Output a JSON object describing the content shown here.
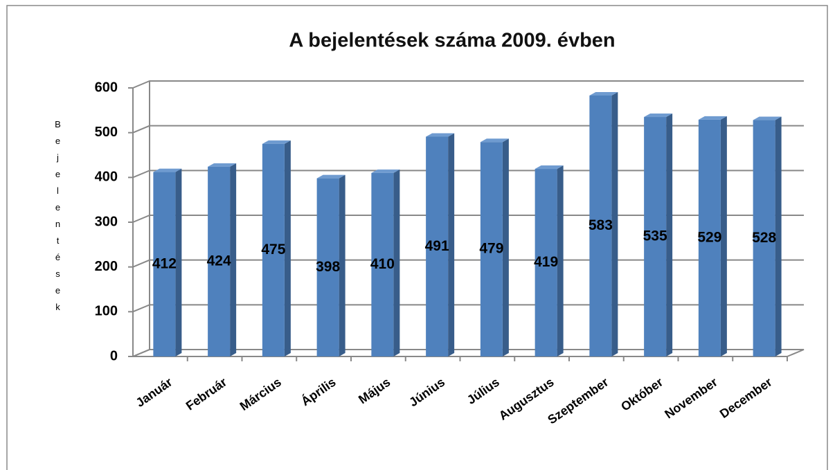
{
  "chart_data": {
    "type": "bar",
    "title": "A bejelentések száma 2009. évben",
    "y_axis_label": "Bejelentések",
    "categories": [
      "Január",
      "Február",
      "Március",
      "Április",
      "Május",
      "Június",
      "Július",
      "Augusztus",
      "Szeptember",
      "Október",
      "November",
      "December"
    ],
    "values": [
      412,
      424,
      475,
      398,
      410,
      491,
      479,
      419,
      583,
      535,
      529,
      528
    ],
    "color": "#4f81bd",
    "ylim": [
      0,
      600
    ],
    "yticks": [
      0,
      100,
      200,
      300,
      400,
      500,
      600
    ],
    "grid": true
  }
}
